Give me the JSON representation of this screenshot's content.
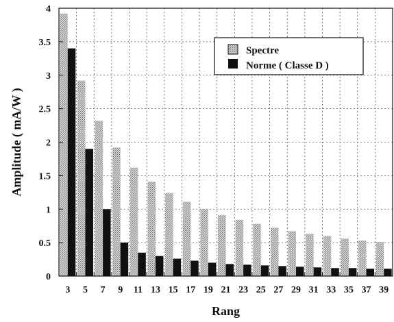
{
  "chart_data": {
    "type": "bar",
    "categories": [
      "3",
      "5",
      "7",
      "9",
      "11",
      "13",
      "15",
      "17",
      "19",
      "21",
      "23",
      "25",
      "27",
      "29",
      "31",
      "33",
      "35",
      "37",
      "39"
    ],
    "series": [
      {
        "name": "Spectre",
        "color": "#bdbdbd",
        "pattern": "stippled-grey",
        "values": [
          3.92,
          2.92,
          2.32,
          1.92,
          1.62,
          1.41,
          1.24,
          1.11,
          1.0,
          0.91,
          0.84,
          0.78,
          0.72,
          0.67,
          0.63,
          0.6,
          0.56,
          0.53,
          0.51
        ]
      },
      {
        "name": "Norme ( Classe D )",
        "color": "#111111",
        "pattern": "solid-black",
        "values": [
          3.4,
          1.9,
          1.0,
          0.5,
          0.35,
          0.3,
          0.26,
          0.23,
          0.2,
          0.18,
          0.17,
          0.16,
          0.15,
          0.14,
          0.13,
          0.12,
          0.12,
          0.11,
          0.11
        ]
      }
    ],
    "xlabel": "Rang",
    "ylabel": "Amplitude ( mA/W )",
    "ylim": [
      0,
      4
    ],
    "yticks": [
      "0",
      "0.5",
      "1",
      "1.5",
      "2",
      "2.5",
      "3",
      "3.5",
      "4"
    ],
    "grid": true,
    "legend": "top-right"
  }
}
